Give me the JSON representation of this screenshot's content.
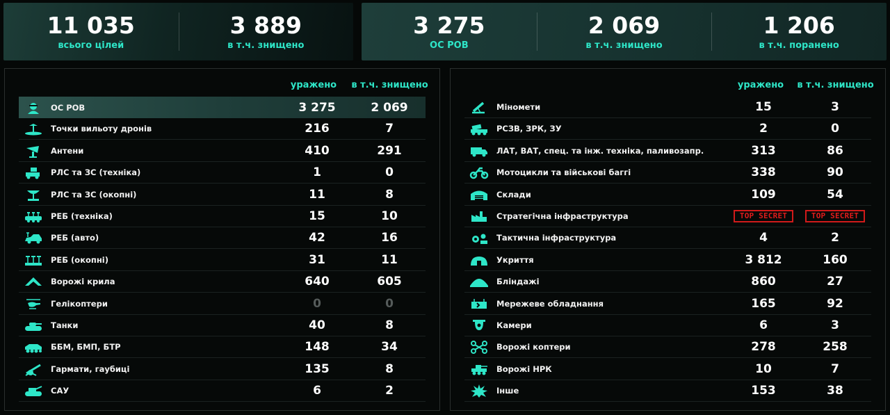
{
  "summary_left": [
    {
      "value": "11 035",
      "label": "всього цілей"
    },
    {
      "value": "3 889",
      "label": "в т.ч. знищено"
    }
  ],
  "summary_right": [
    {
      "value": "3 275",
      "label": "ОС РОВ"
    },
    {
      "value": "2 069",
      "label": "в т.ч. знищено"
    },
    {
      "value": "1 206",
      "label": "в т.ч. поранено"
    }
  ],
  "left_table": {
    "col_hit": "уражено",
    "col_destroyed": "в т.ч. знищено",
    "rows": [
      {
        "icon": "soldier-icon",
        "label": "ОС РОВ",
        "hit": "3 275",
        "destroyed": "2 069"
      },
      {
        "icon": "drone-launch-icon",
        "label": "Точки вильоту дронів",
        "hit": "216",
        "destroyed": "7"
      },
      {
        "icon": "antenna-icon",
        "label": "Антени",
        "hit": "410",
        "destroyed": "291"
      },
      {
        "icon": "radar-vehicle-icon",
        "label": "РЛС та ЗС (техніка)",
        "hit": "1",
        "destroyed": "0"
      },
      {
        "icon": "radar-trench-icon",
        "label": "РЛС та ЗС (окопні)",
        "hit": "11",
        "destroyed": "8"
      },
      {
        "icon": "ew-vehicle-icon",
        "label": "РЕБ (техніка)",
        "hit": "15",
        "destroyed": "10"
      },
      {
        "icon": "ew-car-icon",
        "label": "РЕБ (авто)",
        "hit": "42",
        "destroyed": "16"
      },
      {
        "icon": "ew-trench-icon",
        "label": "РЕБ (окопні)",
        "hit": "31",
        "destroyed": "11"
      },
      {
        "icon": "enemy-wings-icon",
        "label": "Ворожі крила",
        "hit": "640",
        "destroyed": "605"
      },
      {
        "icon": "helicopter-icon",
        "label": "Гелікоптери",
        "hit": "0",
        "destroyed": "0"
      },
      {
        "icon": "tank-icon",
        "label": "Танки",
        "hit": "40",
        "destroyed": "8"
      },
      {
        "icon": "ifv-icon",
        "label": "ББМ, БМП, БТР",
        "hit": "148",
        "destroyed": "34"
      },
      {
        "icon": "howitzer-icon",
        "label": "Гармати, гаубиці",
        "hit": "135",
        "destroyed": "8"
      },
      {
        "icon": "sau-icon",
        "label": "САУ",
        "hit": "6",
        "destroyed": "2"
      }
    ]
  },
  "right_table": {
    "col_hit": "уражено",
    "col_destroyed": "в т.ч. знищено",
    "rows": [
      {
        "icon": "mortar-icon",
        "label": "Міномети",
        "hit": "15",
        "destroyed": "3"
      },
      {
        "icon": "mlrs-icon",
        "label": "РСЗВ, ЗРК, ЗУ",
        "hit": "2",
        "destroyed": "0"
      },
      {
        "icon": "truck-icon",
        "label": "ЛАТ, ВАТ, спец. та інж. техніка, паливозапр.",
        "hit": "313",
        "destroyed": "86"
      },
      {
        "icon": "motorcycle-icon",
        "label": "Мотоцикли та військові баггі",
        "hit": "338",
        "destroyed": "90"
      },
      {
        "icon": "warehouse-icon",
        "label": "Склади",
        "hit": "109",
        "destroyed": "54"
      },
      {
        "icon": "factory-icon",
        "label": "Стратегічна інфраструктура",
        "hit": "TOP SECRET",
        "destroyed": "TOP SECRET"
      },
      {
        "icon": "gears-icon",
        "label": "Тактична інфраструктура",
        "hit": "4",
        "destroyed": "2"
      },
      {
        "icon": "shelter-icon",
        "label": "Укриття",
        "hit": "3 812",
        "destroyed": "160"
      },
      {
        "icon": "dugout-icon",
        "label": "Бліндажі",
        "hit": "860",
        "destroyed": "27"
      },
      {
        "icon": "network-icon",
        "label": "Мережеве обладнання",
        "hit": "165",
        "destroyed": "92"
      },
      {
        "icon": "camera-icon",
        "label": "Камери",
        "hit": "6",
        "destroyed": "3"
      },
      {
        "icon": "quadcopter-icon",
        "label": "Ворожі коптери",
        "hit": "278",
        "destroyed": "258"
      },
      {
        "icon": "ugv-icon",
        "label": "Ворожі НРК",
        "hit": "10",
        "destroyed": "7"
      },
      {
        "icon": "explosion-icon",
        "label": "Інше",
        "hit": "153",
        "destroyed": "38"
      }
    ]
  },
  "colors": {
    "accent": "#2ee6c8",
    "secret": "#e01b1b",
    "zero": "#555b5a"
  }
}
